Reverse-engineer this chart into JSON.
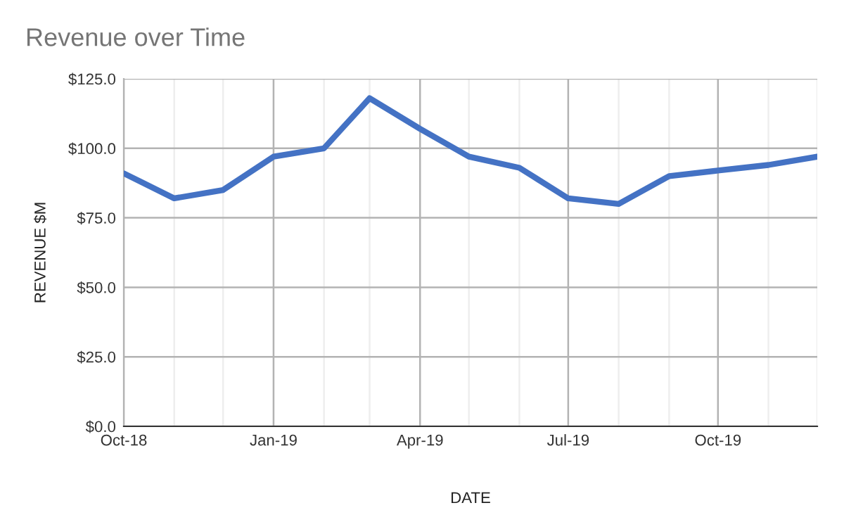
{
  "chart_data": {
    "type": "line",
    "title": "Revenue over Time",
    "xlabel": "DATE",
    "ylabel": "REVENUE $M",
    "x": [
      "2018-10",
      "2018-11",
      "2018-12",
      "2019-01",
      "2019-02",
      "2019-03",
      "2019-04",
      "2019-05",
      "2019-06",
      "2019-07",
      "2019-08",
      "2019-09",
      "2019-10",
      "2019-11",
      "2019-12"
    ],
    "series": [
      {
        "color": "#4472c4",
        "values": [
          91,
          82,
          85,
          97,
          100,
          118,
          107,
          97,
          93,
          82,
          80,
          90,
          92,
          94,
          97
        ]
      }
    ],
    "xlim": [
      "2018-10",
      "2019-12"
    ],
    "xticks": [
      {
        "value": "2018-10",
        "label": "Oct-18"
      },
      {
        "value": "2018-11",
        "label": null
      },
      {
        "value": "2018-12",
        "label": null
      },
      {
        "value": "2019-01",
        "label": "Jan-19"
      },
      {
        "value": "2019-02",
        "label": null
      },
      {
        "value": "2019-03",
        "label": null
      },
      {
        "value": "2019-04",
        "label": "Apr-19"
      },
      {
        "value": "2019-05",
        "label": null
      },
      {
        "value": "2019-06",
        "label": null
      },
      {
        "value": "2019-07",
        "label": "Jul-19"
      },
      {
        "value": "2019-08",
        "label": null
      },
      {
        "value": "2019-09",
        "label": null
      },
      {
        "value": "2019-10",
        "label": "Oct-19"
      },
      {
        "value": "2019-11",
        "label": null
      },
      {
        "value": "2019-12",
        "label": null
      }
    ],
    "ylim": [
      0,
      125
    ],
    "yticks": [
      {
        "value": 0,
        "label": "$0.0"
      },
      {
        "value": 25,
        "label": "$25.0"
      },
      {
        "value": 50,
        "label": "$50.0"
      },
      {
        "value": 75,
        "label": "$75.0"
      },
      {
        "value": 100,
        "label": "$100.0"
      },
      {
        "value": 125,
        "label": "$125.0"
      }
    ],
    "grid": true,
    "line_style": "solid",
    "marker": "none"
  }
}
